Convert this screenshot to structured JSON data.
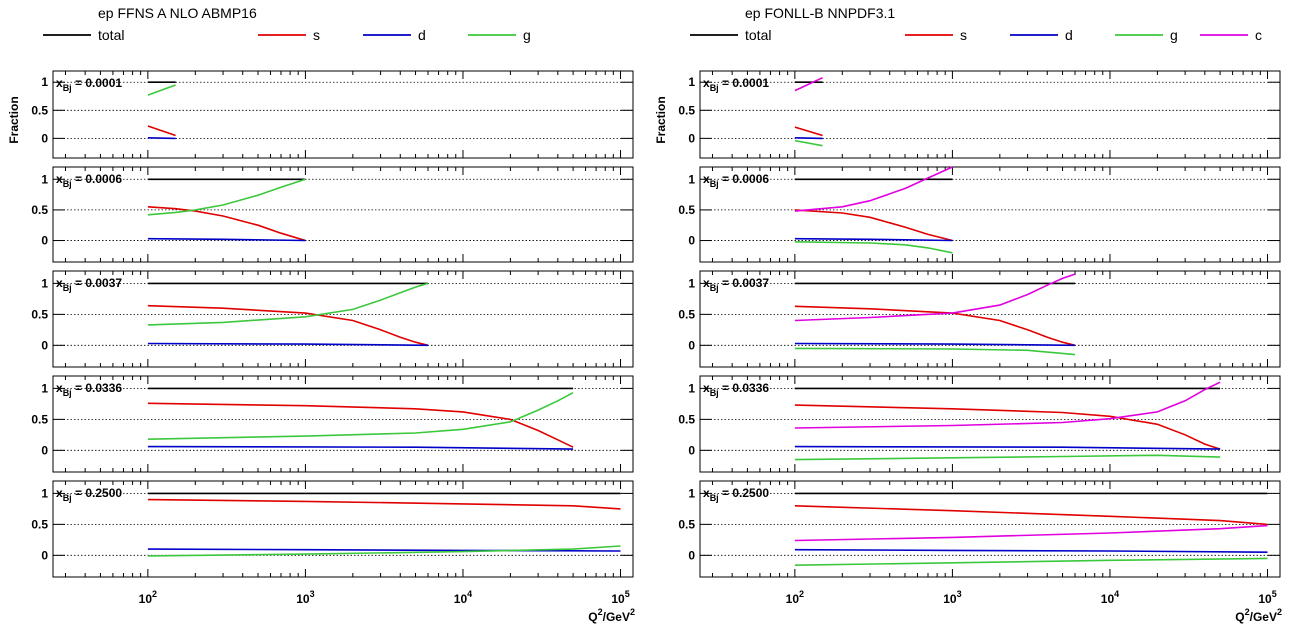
{
  "chart_data": [
    {
      "type": "line",
      "title": "ep FFNS A NLO ABMP16",
      "ylabel": "Fraction",
      "xlabel_base": "Q",
      "xlabel_sup": "2",
      "xlabel_rest": "/GeV",
      "xlabel_sup2": "2",
      "xscale": "log",
      "xlim": [
        25,
        120000
      ],
      "ylim": [
        -0.35,
        1.2
      ],
      "x_ticks": [
        {
          "base": "10",
          "exp": "2"
        },
        {
          "base": "10",
          "exp": "3"
        },
        {
          "base": "10",
          "exp": "4"
        },
        {
          "base": "10",
          "exp": "5"
        }
      ],
      "y_ticks": [
        "0",
        "0.5",
        "1"
      ],
      "legend": [
        {
          "name": "total",
          "color": "#000000"
        },
        {
          "name": "s",
          "color": "#e00000"
        },
        {
          "name": "d",
          "color": "#0000c8"
        },
        {
          "name": "g",
          "color": "#3cc83c"
        }
      ],
      "panels": [
        {
          "label_base": "x",
          "label_sub": "Bj",
          "label_val": " = 0.0001",
          "series": [
            {
              "name": "total",
              "x": [
                100,
                150
              ],
              "y": [
                1,
                1
              ]
            },
            {
              "name": "s",
              "x": [
                100,
                150
              ],
              "y": [
                0.22,
                0.05
              ]
            },
            {
              "name": "d",
              "x": [
                100,
                150
              ],
              "y": [
                0.01,
                0.0
              ]
            },
            {
              "name": "g",
              "x": [
                100,
                150
              ],
              "y": [
                0.77,
                0.95
              ]
            }
          ]
        },
        {
          "label_base": "x",
          "label_sub": "Bj",
          "label_val": " = 0.0006",
          "series": [
            {
              "name": "total",
              "x": [
                100,
                1000
              ],
              "y": [
                1,
                1
              ]
            },
            {
              "name": "s",
              "x": [
                100,
                150,
                200,
                300,
                500,
                700,
                1000
              ],
              "y": [
                0.55,
                0.52,
                0.48,
                0.4,
                0.25,
                0.12,
                0.0
              ]
            },
            {
              "name": "d",
              "x": [
                100,
                300,
                1000
              ],
              "y": [
                0.03,
                0.02,
                0.0
              ]
            },
            {
              "name": "g",
              "x": [
                100,
                150,
                200,
                300,
                500,
                700,
                1000
              ],
              "y": [
                0.42,
                0.46,
                0.5,
                0.58,
                0.74,
                0.87,
                1.0
              ]
            }
          ]
        },
        {
          "label_base": "x",
          "label_sub": "Bj",
          "label_val": " = 0.0037",
          "series": [
            {
              "name": "total",
              "x": [
                100,
                6000
              ],
              "y": [
                1,
                1
              ]
            },
            {
              "name": "s",
              "x": [
                100,
                300,
                1000,
                2000,
                3000,
                4000,
                5000,
                6000
              ],
              "y": [
                0.64,
                0.6,
                0.52,
                0.4,
                0.25,
                0.13,
                0.05,
                0.0
              ]
            },
            {
              "name": "d",
              "x": [
                100,
                1000,
                6000
              ],
              "y": [
                0.03,
                0.02,
                0.0
              ]
            },
            {
              "name": "g",
              "x": [
                100,
                300,
                1000,
                2000,
                3000,
                4000,
                5000,
                6000
              ],
              "y": [
                0.33,
                0.37,
                0.46,
                0.58,
                0.73,
                0.85,
                0.94,
                1.0
              ]
            }
          ]
        },
        {
          "label_base": "x",
          "label_sub": "Bj",
          "label_val": " = 0.0336",
          "series": [
            {
              "name": "total",
              "x": [
                100,
                50000
              ],
              "y": [
                1,
                1
              ]
            },
            {
              "name": "s",
              "x": [
                100,
                1000,
                5000,
                10000,
                20000,
                30000,
                40000,
                50000
              ],
              "y": [
                0.76,
                0.72,
                0.67,
                0.62,
                0.5,
                0.32,
                0.17,
                0.05
              ]
            },
            {
              "name": "d",
              "x": [
                100,
                5000,
                50000
              ],
              "y": [
                0.06,
                0.05,
                0.02
              ]
            },
            {
              "name": "g",
              "x": [
                100,
                1000,
                5000,
                10000,
                20000,
                30000,
                40000,
                50000
              ],
              "y": [
                0.18,
                0.23,
                0.28,
                0.34,
                0.46,
                0.65,
                0.8,
                0.93
              ]
            }
          ]
        },
        {
          "label_base": "x",
          "label_sub": "Bj",
          "label_val": " = 0.2500",
          "series": [
            {
              "name": "total",
              "x": [
                100,
                100000
              ],
              "y": [
                1,
                1
              ]
            },
            {
              "name": "s",
              "x": [
                100,
                1000,
                10000,
                50000,
                100000
              ],
              "y": [
                0.9,
                0.87,
                0.83,
                0.8,
                0.75
              ]
            },
            {
              "name": "d",
              "x": [
                100,
                1000,
                10000,
                100000
              ],
              "y": [
                0.1,
                0.09,
                0.08,
                0.07
              ]
            },
            {
              "name": "g",
              "x": [
                100,
                1000,
                10000,
                50000,
                100000
              ],
              "y": [
                -0.01,
                0.02,
                0.06,
                0.1,
                0.15
              ]
            }
          ]
        }
      ]
    },
    {
      "type": "line",
      "title": "ep FONLL-B NNPDF3.1",
      "ylabel": "Fraction",
      "xlabel_base": "Q",
      "xlabel_sup": "2",
      "xlabel_rest": "/GeV",
      "xlabel_sup2": "2",
      "xscale": "log",
      "xlim": [
        25,
        120000
      ],
      "ylim": [
        -0.35,
        1.2
      ],
      "x_ticks": [
        {
          "base": "10",
          "exp": "2"
        },
        {
          "base": "10",
          "exp": "3"
        },
        {
          "base": "10",
          "exp": "4"
        },
        {
          "base": "10",
          "exp": "5"
        }
      ],
      "y_ticks": [
        "0",
        "0.5",
        "1"
      ],
      "legend": [
        {
          "name": "total",
          "color": "#000000"
        },
        {
          "name": "s",
          "color": "#e00000"
        },
        {
          "name": "d",
          "color": "#0000c8"
        },
        {
          "name": "g",
          "color": "#3cc83c"
        },
        {
          "name": "c",
          "color": "#e000e0"
        }
      ],
      "panels": [
        {
          "label_base": "x",
          "label_sub": "Bj",
          "label_val": " = 0.0001",
          "series": [
            {
              "name": "total",
              "x": [
                100,
                150
              ],
              "y": [
                1,
                1
              ]
            },
            {
              "name": "s",
              "x": [
                100,
                150
              ],
              "y": [
                0.2,
                0.05
              ]
            },
            {
              "name": "d",
              "x": [
                100,
                150
              ],
              "y": [
                0.01,
                0.0
              ]
            },
            {
              "name": "g",
              "x": [
                100,
                150
              ],
              "y": [
                -0.04,
                -0.13
              ]
            },
            {
              "name": "c",
              "x": [
                100,
                150
              ],
              "y": [
                0.85,
                1.08
              ]
            }
          ]
        },
        {
          "label_base": "x",
          "label_sub": "Bj",
          "label_val": " = 0.0006",
          "series": [
            {
              "name": "total",
              "x": [
                100,
                1000
              ],
              "y": [
                1,
                1
              ]
            },
            {
              "name": "s",
              "x": [
                100,
                200,
                300,
                500,
                700,
                1000
              ],
              "y": [
                0.5,
                0.45,
                0.38,
                0.22,
                0.1,
                0.0
              ]
            },
            {
              "name": "d",
              "x": [
                100,
                300,
                1000
              ],
              "y": [
                0.03,
                0.02,
                0.0
              ]
            },
            {
              "name": "g",
              "x": [
                100,
                300,
                500,
                700,
                1000
              ],
              "y": [
                -0.02,
                -0.04,
                -0.07,
                -0.12,
                -0.2
              ]
            },
            {
              "name": "c",
              "x": [
                100,
                200,
                300,
                500,
                700,
                1000
              ],
              "y": [
                0.48,
                0.55,
                0.65,
                0.85,
                1.02,
                1.2
              ]
            }
          ]
        },
        {
          "label_base": "x",
          "label_sub": "Bj",
          "label_val": " = 0.0037",
          "series": [
            {
              "name": "total",
              "x": [
                100,
                6000
              ],
              "y": [
                1,
                1
              ]
            },
            {
              "name": "s",
              "x": [
                100,
                300,
                1000,
                2000,
                3000,
                4000,
                5000,
                6000
              ],
              "y": [
                0.63,
                0.59,
                0.52,
                0.4,
                0.25,
                0.13,
                0.05,
                0.0
              ]
            },
            {
              "name": "d",
              "x": [
                100,
                1000,
                6000
              ],
              "y": [
                0.03,
                0.02,
                0.0
              ]
            },
            {
              "name": "g",
              "x": [
                100,
                1000,
                3000,
                6000
              ],
              "y": [
                -0.05,
                -0.06,
                -0.08,
                -0.15
              ]
            },
            {
              "name": "c",
              "x": [
                100,
                300,
                1000,
                2000,
                3000,
                4000,
                5000,
                6000
              ],
              "y": [
                0.4,
                0.45,
                0.52,
                0.65,
                0.82,
                0.97,
                1.08,
                1.15
              ]
            }
          ]
        },
        {
          "label_base": "x",
          "label_sub": "Bj",
          "label_val": " = 0.0336",
          "series": [
            {
              "name": "total",
              "x": [
                100,
                50000
              ],
              "y": [
                1,
                1
              ]
            },
            {
              "name": "s",
              "x": [
                100,
                1000,
                5000,
                10000,
                20000,
                30000,
                40000,
                50000
              ],
              "y": [
                0.73,
                0.67,
                0.61,
                0.55,
                0.42,
                0.25,
                0.1,
                0.02
              ]
            },
            {
              "name": "d",
              "x": [
                100,
                5000,
                50000
              ],
              "y": [
                0.06,
                0.05,
                0.02
              ]
            },
            {
              "name": "g",
              "x": [
                100,
                1000,
                5000,
                20000,
                50000
              ],
              "y": [
                -0.15,
                -0.12,
                -0.1,
                -0.08,
                -0.11
              ]
            },
            {
              "name": "c",
              "x": [
                100,
                1000,
                5000,
                10000,
                20000,
                30000,
                40000,
                50000
              ],
              "y": [
                0.36,
                0.4,
                0.45,
                0.51,
                0.62,
                0.8,
                0.98,
                1.1
              ]
            }
          ]
        },
        {
          "label_base": "x",
          "label_sub": "Bj",
          "label_val": " = 0.2500",
          "series": [
            {
              "name": "total",
              "x": [
                100,
                100000
              ],
              "y": [
                1,
                1
              ]
            },
            {
              "name": "s",
              "x": [
                100,
                1000,
                10000,
                50000,
                100000
              ],
              "y": [
                0.8,
                0.72,
                0.63,
                0.56,
                0.5
              ]
            },
            {
              "name": "d",
              "x": [
                100,
                1000,
                10000,
                100000
              ],
              "y": [
                0.09,
                0.08,
                0.07,
                0.05
              ]
            },
            {
              "name": "g",
              "x": [
                100,
                1000,
                10000,
                100000
              ],
              "y": [
                -0.16,
                -0.12,
                -0.08,
                -0.05
              ]
            },
            {
              "name": "c",
              "x": [
                100,
                1000,
                10000,
                50000,
                100000
              ],
              "y": [
                0.24,
                0.29,
                0.36,
                0.43,
                0.48
              ]
            }
          ]
        }
      ]
    }
  ]
}
